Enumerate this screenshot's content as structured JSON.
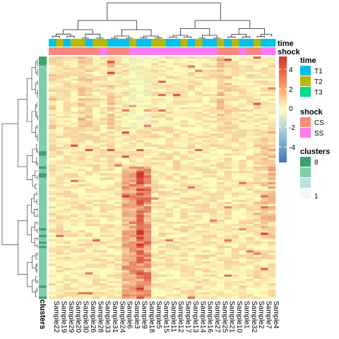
{
  "chart_data": {
    "type": "heatmap",
    "columns": [
      "Sample22",
      "Sample19",
      "Sample29",
      "Sample20",
      "Sample30",
      "Sample26",
      "Sample28",
      "Sample33",
      "Sample31",
      "Sample24",
      "Sample6",
      "Sample3",
      "Sample9",
      "Sample18",
      "Sample5",
      "Sample15",
      "Sample11",
      "Sample12",
      "Sample17",
      "Sample13",
      "Sample14",
      "Sample16",
      "Sample27",
      "Sample25",
      "Sample21",
      "Sample10",
      "Sample1",
      "Sample32",
      "Sample2",
      "Sample7",
      "Sample4"
    ],
    "column_annotations": {
      "time": [
        "T1",
        "T2",
        "T1",
        "T2",
        "T2",
        "T1",
        "T2",
        "T2",
        "T1",
        "T1",
        "T1",
        "T2",
        "T1",
        "T1",
        "T2",
        "T2",
        "T1",
        "T1",
        "T2",
        "T1",
        "T2",
        "T1",
        "T1",
        "T2",
        "T1",
        "T2",
        "T1",
        "T1",
        "T2",
        "T1",
        "T1"
      ],
      "shock": [
        "CS",
        "CS",
        "CS",
        "CS",
        "CS",
        "CS",
        "CS",
        "SS",
        "CS",
        "CS",
        "CS",
        "SS",
        "SS",
        "SS",
        "SS",
        "SS",
        "SS",
        "SS",
        "SS",
        "SS",
        "SS",
        "SS",
        "SS",
        "CS",
        "CS",
        "CS",
        "SS",
        "CS",
        "CS",
        "SS",
        "SS"
      ]
    },
    "row_annotation_label": "clusters",
    "color_scale": {
      "range": [
        -5,
        5
      ],
      "ticks": [
        4,
        2,
        0,
        -2,
        -4
      ],
      "low": "#4575b4",
      "mid": "#ffffbf",
      "high": "#d73027"
    },
    "clustered_rows": true,
    "clustered_columns": true
  },
  "annotations": {
    "time_label": "time",
    "shock_label": "shock"
  },
  "legend": {
    "color_ticks": [
      "4",
      "2",
      "0",
      "-2",
      "-4"
    ],
    "time": {
      "title": "time",
      "items": [
        {
          "label": "T1",
          "color": "#00c0f0"
        },
        {
          "label": "T2",
          "color": "#b8b800"
        },
        {
          "label": "T3",
          "color": "#00d98a"
        }
      ]
    },
    "shock": {
      "title": "shock",
      "items": [
        {
          "label": "CS",
          "color": "#f8897c"
        },
        {
          "label": "SS",
          "color": "#ff7cf0"
        }
      ]
    },
    "clusters": {
      "title": "clusters",
      "top_label": "8",
      "bottom_label": "1",
      "colors": [
        "#3aa36c",
        "#7ccfa8",
        "#b6e3e1",
        "#eef8f8"
      ]
    }
  }
}
